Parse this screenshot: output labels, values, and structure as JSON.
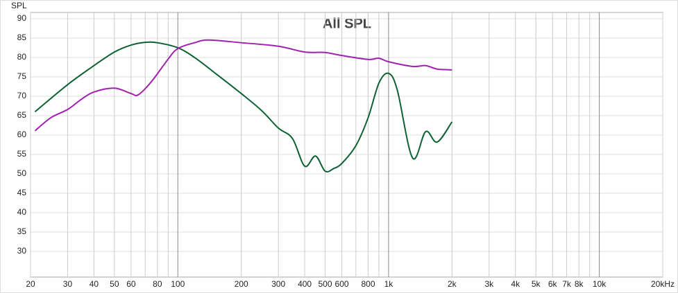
{
  "chart_data": {
    "type": "line",
    "title": "All SPL",
    "y_label": "SPL",
    "xscale": "log",
    "grid": true,
    "xlim": [
      20,
      20000
    ],
    "ylim": [
      23.4,
      91.6
    ],
    "xticks": [
      20,
      30,
      40,
      50,
      60,
      {
        "value": 70,
        "label": null
      },
      80,
      {
        "value": 90,
        "label": null
      },
      100,
      200,
      300,
      400,
      500,
      600,
      {
        "value": 700,
        "label": null
      },
      800,
      {
        "value": 900,
        "label": null
      },
      {
        "value": 1000,
        "label": "1k"
      },
      {
        "value": 2000,
        "label": "2k"
      },
      {
        "value": 3000,
        "label": "3k"
      },
      {
        "value": 4000,
        "label": "4k"
      },
      {
        "value": 5000,
        "label": "5k"
      },
      {
        "value": 6000,
        "label": "6k"
      },
      {
        "value": 7000,
        "label": "7k"
      },
      {
        "value": 8000,
        "label": "8k"
      },
      {
        "value": 9000,
        "label": null
      },
      {
        "value": 10000,
        "label": "10k"
      },
      {
        "value": 20000,
        "label": "20kHz"
      }
    ],
    "yticks": [
      30,
      35,
      40,
      45,
      50,
      55,
      60,
      65,
      70,
      75,
      80,
      85,
      90
    ],
    "series": [
      {
        "color": "#0b6132",
        "x": [
          21,
          30,
          40,
          50,
          60,
          70,
          80,
          100,
          120,
          150,
          200,
          250,
          300,
          350,
          400,
          450,
          500,
          550,
          600,
          700,
          800,
          900,
          1000,
          1100,
          1300,
          1500,
          1700,
          2000
        ],
        "values": [
          66,
          73,
          77.9,
          81.4,
          83.2,
          83.9,
          83.8,
          82.5,
          80,
          76,
          70.7,
          66.3,
          61.8,
          59.1,
          52,
          54.6,
          50.7,
          51.4,
          52.7,
          57.3,
          64.5,
          73.4,
          75.9,
          71.6,
          54.1,
          60.9,
          58.2,
          63.4
        ]
      },
      {
        "color": "#a020b0",
        "x": [
          21,
          25,
          30,
          35,
          40,
          50,
          60,
          65,
          75,
          90,
          100,
          120,
          140,
          200,
          300,
          400,
          500,
          600,
          800,
          900,
          1000,
          1300,
          1500,
          1700,
          2000
        ],
        "values": [
          61.1,
          64.5,
          66.6,
          69.3,
          71.1,
          72.1,
          70.7,
          70.4,
          73.8,
          79.6,
          82.3,
          83.8,
          84.5,
          83.8,
          82.9,
          81.4,
          81.3,
          80.5,
          79.5,
          79.8,
          78.9,
          77.7,
          77.9,
          77,
          76.8
        ]
      }
    ]
  }
}
